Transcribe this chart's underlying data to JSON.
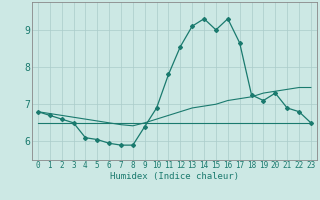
{
  "xlabel": "Humidex (Indice chaleur)",
  "x": [
    0,
    1,
    2,
    3,
    4,
    5,
    6,
    7,
    8,
    9,
    10,
    11,
    12,
    13,
    14,
    15,
    16,
    17,
    18,
    19,
    20,
    21,
    22,
    23
  ],
  "curve1": [
    6.8,
    6.7,
    6.6,
    6.5,
    6.1,
    6.05,
    5.95,
    5.9,
    5.9,
    6.4,
    6.9,
    7.8,
    8.55,
    9.1,
    9.3,
    9.0,
    9.3,
    8.65,
    7.25,
    7.1,
    7.3,
    6.9,
    6.8,
    6.5
  ],
  "curve2": [
    6.8,
    6.75,
    6.7,
    6.65,
    6.6,
    6.55,
    6.5,
    6.45,
    6.42,
    6.5,
    6.6,
    6.7,
    6.8,
    6.9,
    6.95,
    7.0,
    7.1,
    7.15,
    7.2,
    7.3,
    7.35,
    7.4,
    7.45,
    7.45
  ],
  "curve3": [
    6.5,
    6.5,
    6.5,
    6.5,
    6.5,
    6.5,
    6.5,
    6.5,
    6.5,
    6.5,
    6.5,
    6.5,
    6.5,
    6.5,
    6.5,
    6.5,
    6.5,
    6.5,
    6.5,
    6.5,
    6.5,
    6.5,
    6.5,
    6.5
  ],
  "line_color": "#1a7a6e",
  "bg_color": "#cce8e4",
  "grid_color": "#aaccca",
  "ylim": [
    5.5,
    9.75
  ],
  "xlim": [
    -0.5,
    23.5
  ],
  "yticks": [
    6,
    7,
    8,
    9
  ],
  "xticks": [
    0,
    1,
    2,
    3,
    4,
    5,
    6,
    7,
    8,
    9,
    10,
    11,
    12,
    13,
    14,
    15,
    16,
    17,
    18,
    19,
    20,
    21,
    22,
    23
  ],
  "tick_fontsize": 5.5,
  "ytick_fontsize": 7.0,
  "xlabel_fontsize": 6.5
}
